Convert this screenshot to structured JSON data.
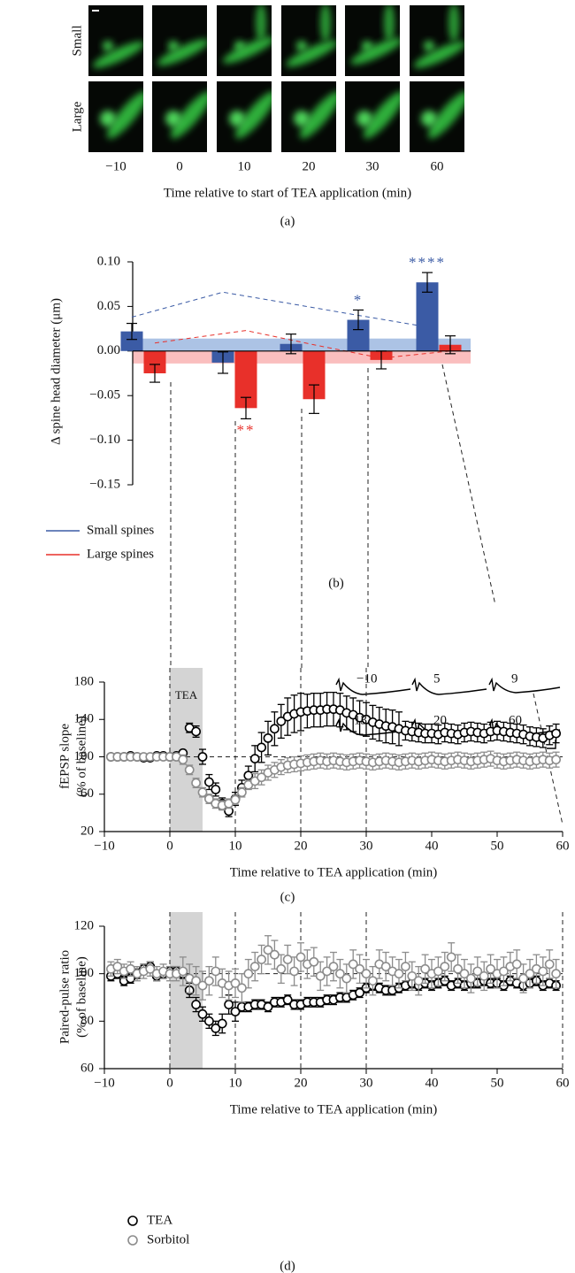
{
  "image_panel": {
    "row_labels": [
      "Small",
      "Large"
    ],
    "column_labels": [
      "−10",
      "0",
      "10",
      "20",
      "30",
      "60"
    ],
    "xlabel": "Time relative to start of TEA application (min)",
    "panel": "(a)"
  },
  "chart_data": [
    {
      "type": "bar",
      "ylabel": "Δ spine head diameter (μm)",
      "panel": "(b)",
      "categories": [
        null,
        null,
        null,
        null,
        null
      ],
      "series": [
        {
          "name": "Small spines",
          "color": "#3b5ba5",
          "values": [
            0.022,
            -0.013,
            0.008,
            0.035,
            0.077
          ],
          "errors": [
            0.009,
            0.012,
            0.011,
            0.011,
            0.011
          ],
          "significance": [
            null,
            null,
            null,
            "*",
            "****"
          ]
        },
        {
          "name": "Large spines",
          "color": "#e8302a",
          "values": [
            -0.025,
            -0.064,
            -0.054,
            -0.01,
            0.007
          ],
          "errors": [
            0.01,
            0.012,
            0.016,
            0.01,
            0.01
          ],
          "significance": [
            null,
            "**",
            null,
            null,
            null
          ]
        }
      ],
      "trend_lines": [
        {
          "color": "#3b5ba5",
          "values": [
            0.038,
            0.066,
            0.053,
            0.04,
            0.027
          ]
        },
        {
          "color": "#e8302a",
          "values": [
            0.009,
            0.023,
            0.007,
            -0.008,
            0.0
          ]
        }
      ],
      "bands": [
        {
          "color": "#9db8e0",
          "range": [
            0,
            0.014
          ]
        },
        {
          "color": "#f9b3b3",
          "range": [
            -0.014,
            0
          ]
        }
      ],
      "ylim": [
        -0.15,
        0.1
      ],
      "yticks": [
        {
          "value": 0.1,
          "label": "0.10"
        },
        {
          "value": 0.05,
          "label": "0.05"
        },
        {
          "value": 0,
          "label": "0.00"
        },
        {
          "value": -0.05,
          "label": "−0.05"
        },
        {
          "value": -0.1,
          "label": "−0.10"
        },
        {
          "value": -0.15,
          "label": "−0.15"
        }
      ]
    },
    {
      "type": "scatter",
      "ylabel": [
        "fEPSP slope",
        "(% of baseline)"
      ],
      "xlabel": "Time relative to TEA application (min)",
      "panel": "(c)",
      "x": [
        -9,
        -8,
        -7,
        -6,
        -5,
        -4,
        -3,
        -2,
        -1,
        0,
        1,
        2,
        3,
        4,
        5,
        6,
        7,
        8,
        9,
        10,
        11,
        12,
        13,
        14,
        15,
        16,
        17,
        18,
        19,
        20,
        21,
        22,
        23,
        24,
        25,
        26,
        27,
        28,
        29,
        30,
        31,
        32,
        33,
        34,
        35,
        36,
        37,
        38,
        39,
        40,
        41,
        42,
        43,
        44,
        45,
        46,
        47,
        48,
        49,
        50,
        51,
        52,
        53,
        54,
        55,
        56,
        57,
        58,
        59
      ],
      "series": [
        {
          "color": "#000000",
          "values": [
            100,
            100,
            100,
            101,
            100,
            99,
            99,
            101,
            101,
            100,
            101,
            104,
            131,
            127,
            100,
            73,
            65,
            50,
            42,
            55,
            67,
            80,
            98,
            110,
            120,
            130,
            138,
            143,
            146,
            148,
            149,
            150,
            150,
            151,
            151,
            150,
            147,
            145,
            142,
            140,
            137,
            135,
            133,
            132,
            130,
            128,
            127,
            126,
            125,
            125,
            124,
            126,
            125,
            124,
            126,
            127,
            126,
            125,
            127,
            128,
            127,
            126,
            125,
            124,
            122,
            121,
            120,
            123,
            125
          ],
          "errors": [
            2,
            2,
            2,
            2,
            2,
            2,
            2,
            2,
            2,
            2,
            2,
            3,
            5,
            6,
            8,
            8,
            7,
            6,
            6,
            7,
            8,
            10,
            14,
            16,
            18,
            18,
            18,
            20,
            20,
            20,
            18,
            18,
            18,
            18,
            18,
            18,
            18,
            18,
            18,
            18,
            18,
            18,
            18,
            18,
            18,
            10,
            10,
            10,
            10,
            10,
            10,
            10,
            10,
            10,
            10,
            10,
            10,
            10,
            10,
            10,
            10,
            10,
            10,
            10,
            10,
            10,
            10,
            10,
            10
          ]
        },
        {
          "color": "#8c8c8c",
          "values": [
            100,
            100,
            100,
            100,
            100,
            100,
            100,
            100,
            100,
            100,
            100,
            97,
            86,
            72,
            62,
            55,
            50,
            48,
            50,
            54,
            62,
            70,
            74,
            78,
            83,
            86,
            89,
            91,
            92,
            93,
            94,
            95,
            96,
            95,
            96,
            95,
            94,
            95,
            96,
            95,
            94,
            95,
            96,
            95,
            94,
            95,
            96,
            95,
            96,
            97,
            96,
            95,
            96,
            97,
            96,
            95,
            96,
            97,
            98,
            96,
            95,
            96,
            97,
            96,
            95,
            96,
            97,
            96,
            97
          ],
          "errors": [
            3,
            3,
            3,
            3,
            3,
            3,
            3,
            3,
            3,
            3,
            3,
            5,
            5,
            5,
            5,
            5,
            5,
            5,
            5,
            5,
            5,
            5,
            8,
            8,
            8,
            8,
            8,
            8,
            8,
            8,
            8,
            8,
            8,
            8,
            8,
            8,
            8,
            8,
            8,
            8,
            8,
            8,
            8,
            8,
            8,
            8,
            8,
            8,
            8,
            8,
            8,
            8,
            8,
            8,
            8,
            8,
            8,
            8,
            8,
            8,
            8,
            8,
            8,
            8,
            8,
            8,
            8,
            8,
            8
          ]
        }
      ],
      "xlim": [
        -10,
        60
      ],
      "xticks": [
        {
          "value": -10,
          "label": "−10"
        },
        0,
        10,
        20,
        30,
        40,
        50,
        60
      ],
      "ylim": [
        20,
        180
      ],
      "yticks": [
        20,
        60,
        100,
        140,
        180
      ],
      "shade": {
        "label": "TEA",
        "range": [
          0,
          5
        ]
      },
      "hline": 100,
      "vlines": [
        0,
        10,
        20,
        30
      ],
      "inset_labels": [
        "−10",
        "5",
        "9",
        "13",
        "20",
        "60"
      ]
    },
    {
      "type": "scatter",
      "ylabel": [
        "Paired-pulse ratio",
        "(% of baseline)"
      ],
      "xlabel": "Time relative to TEA application (min)",
      "panel": "(d)",
      "x": [
        -9,
        -8,
        -7,
        -6,
        -5,
        -4,
        -3,
        -2,
        -1,
        0,
        1,
        2,
        3,
        4,
        5,
        6,
        7,
        8,
        9,
        10,
        11,
        12,
        13,
        14,
        15,
        16,
        17,
        18,
        19,
        20,
        21,
        22,
        23,
        24,
        25,
        26,
        27,
        28,
        29,
        30,
        31,
        32,
        33,
        34,
        35,
        36,
        37,
        38,
        39,
        40,
        41,
        42,
        43,
        44,
        45,
        46,
        47,
        48,
        49,
        50,
        51,
        52,
        53,
        54,
        55,
        56,
        57,
        58,
        59
      ],
      "series": [
        {
          "name": "TEA",
          "color": "#000000",
          "values": [
            99,
            100,
            97,
            98,
            100,
            102,
            103,
            99,
            100,
            101,
            101,
            100,
            93,
            87,
            83,
            80,
            77,
            79,
            87,
            84,
            86,
            86,
            87,
            87,
            86,
            88,
            88,
            89,
            87,
            87,
            88,
            88,
            88,
            89,
            89,
            90,
            90,
            91,
            92,
            94,
            95,
            94,
            93,
            93,
            94,
            95,
            96,
            95,
            96,
            95,
            96,
            97,
            95,
            96,
            95,
            96,
            96,
            97,
            96,
            96,
            95,
            97,
            96,
            95,
            96,
            97,
            95,
            96,
            95
          ],
          "errors": [
            2,
            2,
            2,
            2,
            2,
            2,
            2,
            2,
            2,
            2,
            2,
            2,
            3,
            3,
            3,
            3,
            3,
            4,
            4,
            4,
            2,
            2,
            2,
            2,
            2,
            2,
            2,
            2,
            2,
            2,
            2,
            2,
            2,
            2,
            2,
            2,
            2,
            2,
            2,
            2,
            2,
            2,
            2,
            2,
            2,
            2,
            2,
            2,
            2,
            2,
            2,
            2,
            2,
            2,
            2,
            2,
            2,
            2,
            2,
            2,
            2,
            2,
            2,
            2,
            2,
            2,
            2,
            2,
            2
          ]
        },
        {
          "name": "Sorbitol",
          "color": "#8c8c8c",
          "values": [
            102,
            103,
            101,
            102,
            100,
            101,
            102,
            100,
            101,
            100,
            100,
            101,
            98,
            97,
            95,
            97,
            101,
            96,
            95,
            96,
            94,
            100,
            103,
            106,
            110,
            108,
            102,
            106,
            101,
            107,
            104,
            105,
            99,
            101,
            103,
            100,
            98,
            104,
            102,
            100,
            97,
            104,
            103,
            101,
            100,
            103,
            99,
            97,
            102,
            100,
            101,
            103,
            107,
            102,
            100,
            98,
            101,
            99,
            102,
            100,
            101,
            103,
            104,
            98,
            100,
            102,
            101,
            104,
            100
          ],
          "errors": [
            3,
            3,
            3,
            3,
            3,
            3,
            3,
            3,
            3,
            3,
            3,
            6,
            6,
            6,
            6,
            6,
            6,
            6,
            6,
            6,
            6,
            6,
            6,
            6,
            6,
            6,
            6,
            6,
            6,
            6,
            6,
            6,
            6,
            6,
            6,
            6,
            6,
            6,
            6,
            6,
            6,
            6,
            6,
            6,
            6,
            6,
            6,
            6,
            6,
            6,
            6,
            6,
            6,
            6,
            6,
            6,
            6,
            6,
            6,
            6,
            6,
            6,
            6,
            6,
            6,
            6,
            6,
            6,
            6
          ]
        }
      ],
      "xlim": [
        -10,
        60
      ],
      "xticks": [
        {
          "value": -10,
          "label": "−10"
        },
        0,
        10,
        20,
        30,
        40,
        50,
        60
      ],
      "ylim": [
        60,
        120
      ],
      "yticks": [
        60,
        80,
        100,
        120
      ],
      "shade": {
        "range": [
          0,
          5
        ]
      },
      "hline": 100,
      "vlines": [
        0,
        10,
        20,
        30,
        60
      ]
    }
  ]
}
